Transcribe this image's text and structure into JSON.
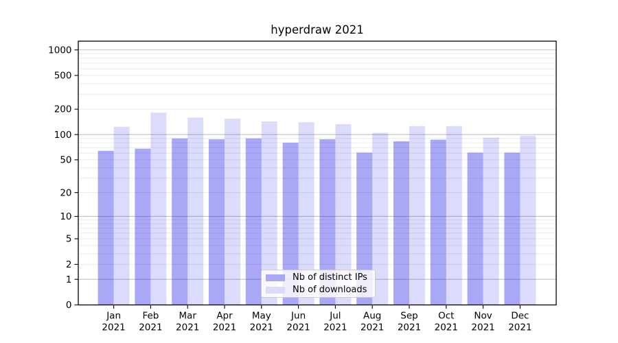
{
  "chart_data": {
    "type": "bar",
    "title": "hyperdraw 2021",
    "xlabel": "",
    "ylabel": "",
    "categories": [
      "Jan 2021",
      "Feb 2021",
      "Mar 2021",
      "Apr 2021",
      "May 2021",
      "Jun 2021",
      "Jul 2021",
      "Aug 2021",
      "Sep 2021",
      "Oct 2021",
      "Nov 2021",
      "Dec 2021"
    ],
    "series": [
      {
        "name": "Nb of distinct IPs",
        "base_color": "#2626e9",
        "opacity": 0.4,
        "values": [
          64,
          68,
          90,
          88,
          90,
          80,
          88,
          61,
          83,
          87,
          61,
          61
        ]
      },
      {
        "name": "Nb of downloads",
        "base_color": "#2626e9",
        "opacity": 0.165,
        "values": [
          124,
          182,
          159,
          154,
          143,
          140,
          133,
          105,
          126,
          126,
          92,
          97
        ]
      }
    ],
    "yscale": "log1p",
    "ylim": [
      0,
      1270
    ],
    "yticks": [
      0,
      1,
      2,
      5,
      10,
      20,
      50,
      100,
      200,
      500,
      1000
    ],
    "grid": {
      "major": [
        1,
        10,
        100,
        1000
      ],
      "minor": [
        2,
        3,
        4,
        5,
        6,
        7,
        8,
        9,
        20,
        30,
        40,
        50,
        60,
        70,
        80,
        90,
        200,
        300,
        400,
        500,
        600,
        700,
        800,
        900
      ],
      "major_color": "#c2c2c2",
      "minor_color": "#eaeaea"
    },
    "legend": {
      "position": "lower center"
    },
    "axis_color": "#000000",
    "background": "#ffffff"
  }
}
